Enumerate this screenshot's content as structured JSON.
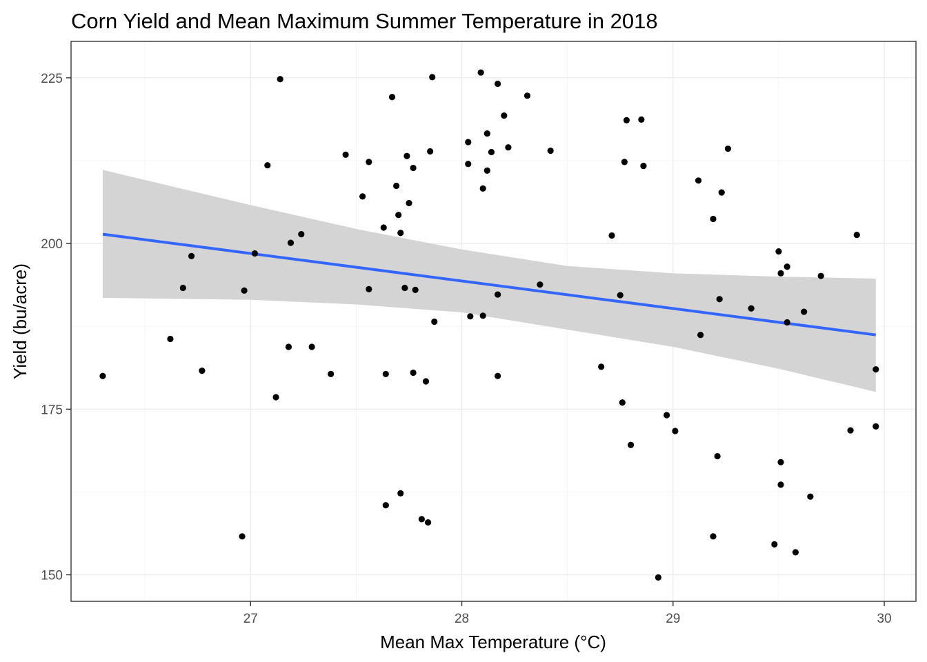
{
  "chart_data": {
    "type": "scatter",
    "title": "Corn Yield and Mean Maximum Summer Temperature in 2018",
    "xlabel": "Mean Max Temperature (°C)",
    "ylabel": "Yield (bu/acre)",
    "xlim": [
      26.15,
      30.15
    ],
    "ylim": [
      146.0,
      230.5
    ],
    "x_ticks": [
      27,
      28,
      29,
      30
    ],
    "y_ticks": [
      150,
      175,
      200,
      225
    ],
    "x_tick_labels": [
      "27",
      "28",
      "29",
      "30"
    ],
    "y_tick_labels": [
      "150",
      "175",
      "200",
      "225"
    ],
    "grid": true,
    "colors": {
      "points": "#000000",
      "fit_line": "#3366ff",
      "ribbon": "#d4d4d4",
      "panel_border": "#333333",
      "grid": "#ebebeb"
    },
    "points": [
      {
        "x": 26.3,
        "y": 180.0
      },
      {
        "x": 26.62,
        "y": 185.6
      },
      {
        "x": 26.68,
        "y": 193.3
      },
      {
        "x": 26.72,
        "y": 198.1
      },
      {
        "x": 26.77,
        "y": 180.8
      },
      {
        "x": 26.96,
        "y": 155.8
      },
      {
        "x": 26.97,
        "y": 192.9
      },
      {
        "x": 27.02,
        "y": 198.5
      },
      {
        "x": 27.08,
        "y": 211.8
      },
      {
        "x": 27.12,
        "y": 176.8
      },
      {
        "x": 27.14,
        "y": 224.8
      },
      {
        "x": 27.18,
        "y": 184.4
      },
      {
        "x": 27.19,
        "y": 200.1
      },
      {
        "x": 27.24,
        "y": 201.4
      },
      {
        "x": 27.29,
        "y": 184.4
      },
      {
        "x": 27.38,
        "y": 180.3
      },
      {
        "x": 27.45,
        "y": 213.4
      },
      {
        "x": 27.53,
        "y": 207.1
      },
      {
        "x": 27.56,
        "y": 212.3
      },
      {
        "x": 27.56,
        "y": 193.1
      },
      {
        "x": 27.63,
        "y": 202.4
      },
      {
        "x": 27.64,
        "y": 180.3
      },
      {
        "x": 27.64,
        "y": 160.5
      },
      {
        "x": 27.67,
        "y": 222.1
      },
      {
        "x": 27.69,
        "y": 208.7
      },
      {
        "x": 27.7,
        "y": 204.3
      },
      {
        "x": 27.71,
        "y": 201.6
      },
      {
        "x": 27.71,
        "y": 162.3
      },
      {
        "x": 27.73,
        "y": 193.3
      },
      {
        "x": 27.74,
        "y": 213.2
      },
      {
        "x": 27.75,
        "y": 206.1
      },
      {
        "x": 27.77,
        "y": 211.4
      },
      {
        "x": 27.77,
        "y": 180.5
      },
      {
        "x": 27.78,
        "y": 193.0
      },
      {
        "x": 27.81,
        "y": 158.4
      },
      {
        "x": 27.83,
        "y": 179.2
      },
      {
        "x": 27.84,
        "y": 157.9
      },
      {
        "x": 27.85,
        "y": 213.9
      },
      {
        "x": 27.86,
        "y": 225.1
      },
      {
        "x": 27.87,
        "y": 188.2
      },
      {
        "x": 28.03,
        "y": 215.3
      },
      {
        "x": 28.03,
        "y": 212.0
      },
      {
        "x": 28.04,
        "y": 189.0
      },
      {
        "x": 28.09,
        "y": 225.8
      },
      {
        "x": 28.1,
        "y": 208.3
      },
      {
        "x": 28.1,
        "y": 189.1
      },
      {
        "x": 28.12,
        "y": 216.6
      },
      {
        "x": 28.12,
        "y": 211.0
      },
      {
        "x": 28.14,
        "y": 213.8
      },
      {
        "x": 28.17,
        "y": 224.1
      },
      {
        "x": 28.17,
        "y": 192.3
      },
      {
        "x": 28.17,
        "y": 180.0
      },
      {
        "x": 28.2,
        "y": 219.3
      },
      {
        "x": 28.22,
        "y": 214.5
      },
      {
        "x": 28.31,
        "y": 222.3
      },
      {
        "x": 28.37,
        "y": 193.8
      },
      {
        "x": 28.42,
        "y": 214.0
      },
      {
        "x": 28.66,
        "y": 181.4
      },
      {
        "x": 28.71,
        "y": 201.2
      },
      {
        "x": 28.75,
        "y": 192.2
      },
      {
        "x": 28.76,
        "y": 176.0
      },
      {
        "x": 28.77,
        "y": 212.3
      },
      {
        "x": 28.78,
        "y": 218.6
      },
      {
        "x": 28.8,
        "y": 169.6
      },
      {
        "x": 28.85,
        "y": 218.7
      },
      {
        "x": 28.86,
        "y": 211.7
      },
      {
        "x": 28.93,
        "y": 149.6
      },
      {
        "x": 28.97,
        "y": 174.1
      },
      {
        "x": 29.01,
        "y": 171.7
      },
      {
        "x": 29.12,
        "y": 209.5
      },
      {
        "x": 29.13,
        "y": 186.2
      },
      {
        "x": 29.19,
        "y": 203.7
      },
      {
        "x": 29.19,
        "y": 155.8
      },
      {
        "x": 29.21,
        "y": 167.9
      },
      {
        "x": 29.22,
        "y": 191.6
      },
      {
        "x": 29.23,
        "y": 207.7
      },
      {
        "x": 29.26,
        "y": 214.3
      },
      {
        "x": 29.37,
        "y": 190.2
      },
      {
        "x": 29.48,
        "y": 154.6
      },
      {
        "x": 29.5,
        "y": 198.8
      },
      {
        "x": 29.51,
        "y": 195.5
      },
      {
        "x": 29.51,
        "y": 167.0
      },
      {
        "x": 29.51,
        "y": 163.6
      },
      {
        "x": 29.54,
        "y": 196.5
      },
      {
        "x": 29.54,
        "y": 188.1
      },
      {
        "x": 29.58,
        "y": 153.4
      },
      {
        "x": 29.62,
        "y": 189.7
      },
      {
        "x": 29.65,
        "y": 161.8
      },
      {
        "x": 29.7,
        "y": 195.1
      },
      {
        "x": 29.84,
        "y": 171.8
      },
      {
        "x": 29.87,
        "y": 201.3
      },
      {
        "x": 29.96,
        "y": 181.0
      },
      {
        "x": 29.96,
        "y": 172.4
      }
    ],
    "fit_line": {
      "x": [
        26.3,
        29.96
      ],
      "y": [
        201.4,
        186.2
      ]
    },
    "confidence_band": {
      "x": [
        26.3,
        27.0,
        27.5,
        28.0,
        28.5,
        29.0,
        29.5,
        29.96
      ],
      "upper": [
        211.1,
        205.8,
        202.2,
        199.1,
        196.6,
        195.5,
        195.0,
        194.7
      ],
      "lower": [
        191.8,
        191.5,
        190.8,
        189.6,
        187.0,
        184.4,
        181.1,
        177.6
      ]
    }
  }
}
